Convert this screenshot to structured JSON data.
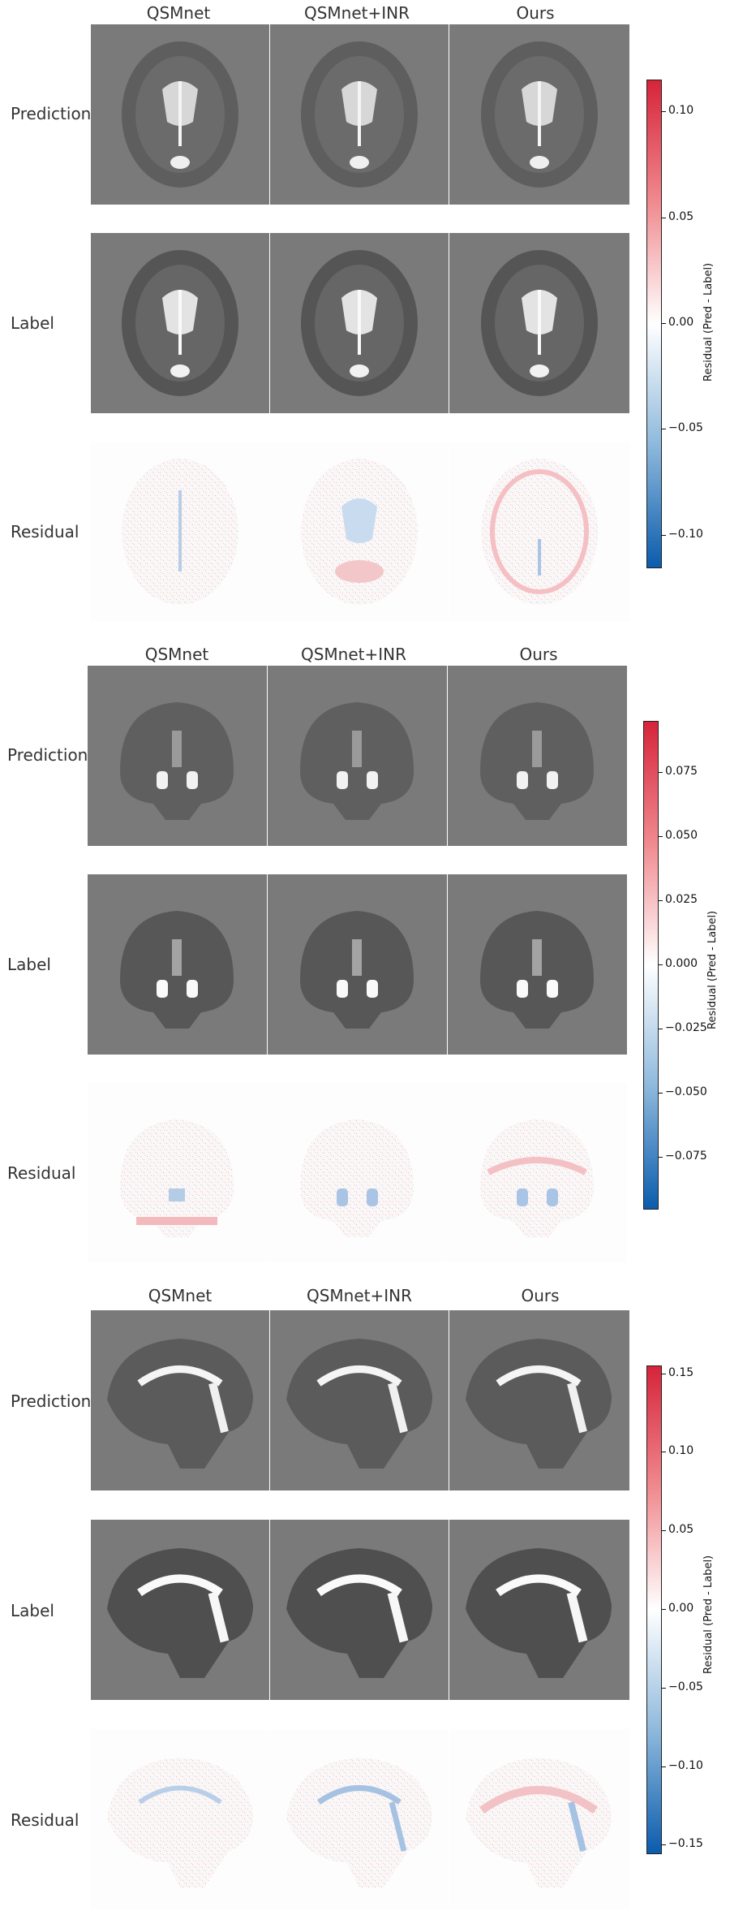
{
  "figure": {
    "panels": [
      {
        "view": "axial",
        "columns": [
          "QSMnet",
          "QSMnet+INR",
          "Ours"
        ],
        "rows": [
          "Prediction",
          "Label",
          "Residual"
        ],
        "colorbar": {
          "title": "Residual (Pred - Label)",
          "range": [
            -0.115,
            0.115
          ],
          "ticks": [
            "0.10",
            "0.05",
            "0.00",
            "−0.05",
            "−0.10"
          ],
          "tick_values": [
            0.1,
            0.05,
            0.0,
            -0.05,
            -0.1
          ]
        }
      },
      {
        "view": "coronal",
        "columns": [
          "QSMnet",
          "QSMnet+INR",
          "Ours"
        ],
        "rows": [
          "Prediction",
          "Label",
          "Residual"
        ],
        "colorbar": {
          "title": "Residual (Pred - Label)",
          "range": [
            -0.095,
            0.095
          ],
          "ticks": [
            "0.075",
            "0.050",
            "0.025",
            "0.000",
            "−0.025",
            "−0.050",
            "−0.075"
          ],
          "tick_values": [
            0.075,
            0.05,
            0.025,
            0.0,
            -0.025,
            -0.05,
            -0.075
          ]
        }
      },
      {
        "view": "sagittal",
        "columns": [
          "QSMnet",
          "QSMnet+INR",
          "Ours"
        ],
        "rows": [
          "Prediction",
          "Label",
          "Residual"
        ],
        "colorbar": {
          "title": "Residual (Pred - Label)",
          "range": [
            -0.155,
            0.155
          ],
          "ticks": [
            "0.15",
            "0.10",
            "0.05",
            "0.00",
            "−0.05",
            "−0.10",
            "−0.15"
          ],
          "tick_values": [
            0.15,
            0.1,
            0.05,
            0.0,
            -0.05,
            -0.1,
            -0.15
          ]
        }
      }
    ],
    "colors": {
      "background_gray": "#7a7a7a",
      "cbar_top": "#d6243a",
      "cbar_mid": "#ffffff",
      "cbar_bottom": "#0b5cad"
    }
  }
}
